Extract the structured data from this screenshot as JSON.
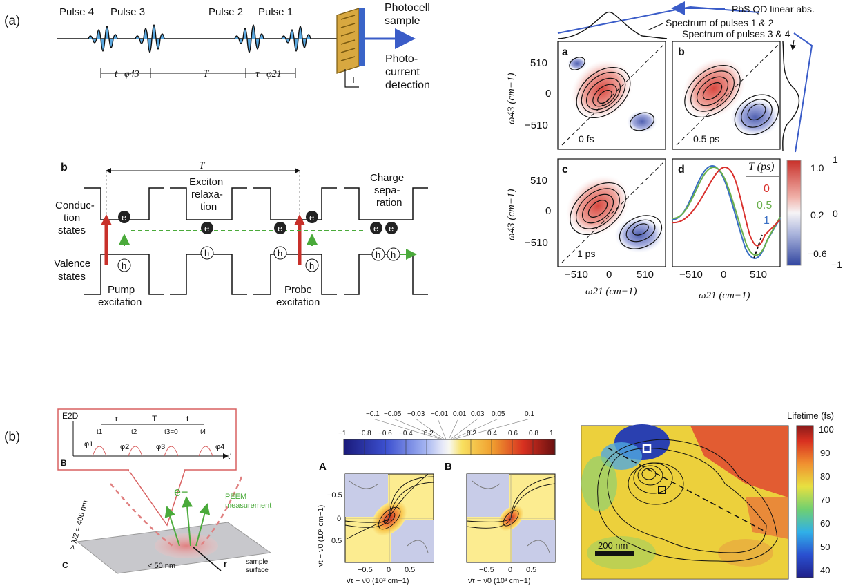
{
  "panel_labels": {
    "a": "(a)",
    "b": "(b)"
  },
  "pulse_diagram": {
    "pulses": [
      "Pulse 4",
      "Pulse 3",
      "Pulse 2",
      "Pulse 1"
    ],
    "t_label": "t",
    "phi43": "φ43",
    "T_label": "T",
    "tau_label": "τ",
    "phi21": "φ21",
    "photocell": "Photocell\nsample",
    "detection": "Photo-\ncurrent\ndetection"
  },
  "energy_diagram": {
    "label": "b",
    "T_label": "T",
    "conduction": "Conduc-\ntion\nstates",
    "valence": "Valence\nstates",
    "exciton": "Exciton\nrelaxa-\ntion",
    "charge": "Charge\nsepa-\nration",
    "pump": "Pump\nexcitation",
    "probe": "Probe\nexcitation",
    "e": "e",
    "h": "h"
  },
  "spectra_2d": {
    "top_annot": "PbS QD linear abs.",
    "spec12": "Spectrum of pulses 1 & 2",
    "spec34": "Spectrum of pulses 3 & 4",
    "panels": [
      {
        "letter": "a",
        "time": "0 fs"
      },
      {
        "letter": "b",
        "time": "0.5 ps"
      },
      {
        "letter": "c",
        "time": "1 ps"
      },
      {
        "letter": "d",
        "time": ""
      }
    ],
    "ylabel": "ω43 (cm−1)",
    "xlabel": "ω21 (cm−1)",
    "yticks": [
      "510",
      "0",
      "−510"
    ],
    "xticks": [
      "−510",
      "0",
      "510"
    ],
    "legend_title": "T (ps)",
    "legend": [
      {
        "name": "0",
        "color": "#d9302c"
      },
      {
        "name": "0.5",
        "color": "#6ab04c"
      },
      {
        "name": "1",
        "color": "#3a6fc4"
      }
    ],
    "colorbar_ticks": [
      "1.0",
      "0.2",
      "−0.6"
    ],
    "colorbar_right": [
      "1",
      "0",
      "−1"
    ]
  },
  "peem": {
    "e2d": "E2D",
    "tau": "τ",
    "T": "T",
    "t": "t",
    "times": [
      "t1",
      "t2",
      "t3=0",
      "t4"
    ],
    "phis": [
      "φ1",
      "φ2",
      "φ3",
      "φ4"
    ],
    "tprime": "t'",
    "label_B": "B",
    "label_C": "C",
    "e_minus": "e−",
    "peem": "PEEM\nmeasurement",
    "lambda": "> λ/2 = 400 nm",
    "lt50": "< 50 nm",
    "r": "r",
    "sample": "sample\nsurface"
  },
  "contour_maps": {
    "scale_top": [
      "−0.1",
      "−0.05",
      "−0.03",
      "−0.01",
      "0.01",
      "0.03",
      "0.05",
      "0.1"
    ],
    "scale_bottom": [
      "−1",
      "−0.8",
      "−0.6",
      "−0.4",
      "−0.2",
      "0.2",
      "0.4",
      "0.6",
      "0.8",
      "1"
    ],
    "label_A": "A",
    "label_B": "B",
    "yticks": [
      "−0.5",
      "0",
      "0.5"
    ],
    "xticks": [
      "−0.5",
      "0",
      "0.5"
    ],
    "ylabel": "ν̄t − ν̄0 (10³ cm−1)",
    "xlabel": "ν̄τ − ν̄0 (10³ cm−1)"
  },
  "lifetime_map": {
    "colorbar_title": "Lifetime (fs)",
    "ticks": [
      "100",
      "90",
      "80",
      "70",
      "60",
      "50",
      "40"
    ],
    "scalebar": "200 nm"
  }
}
